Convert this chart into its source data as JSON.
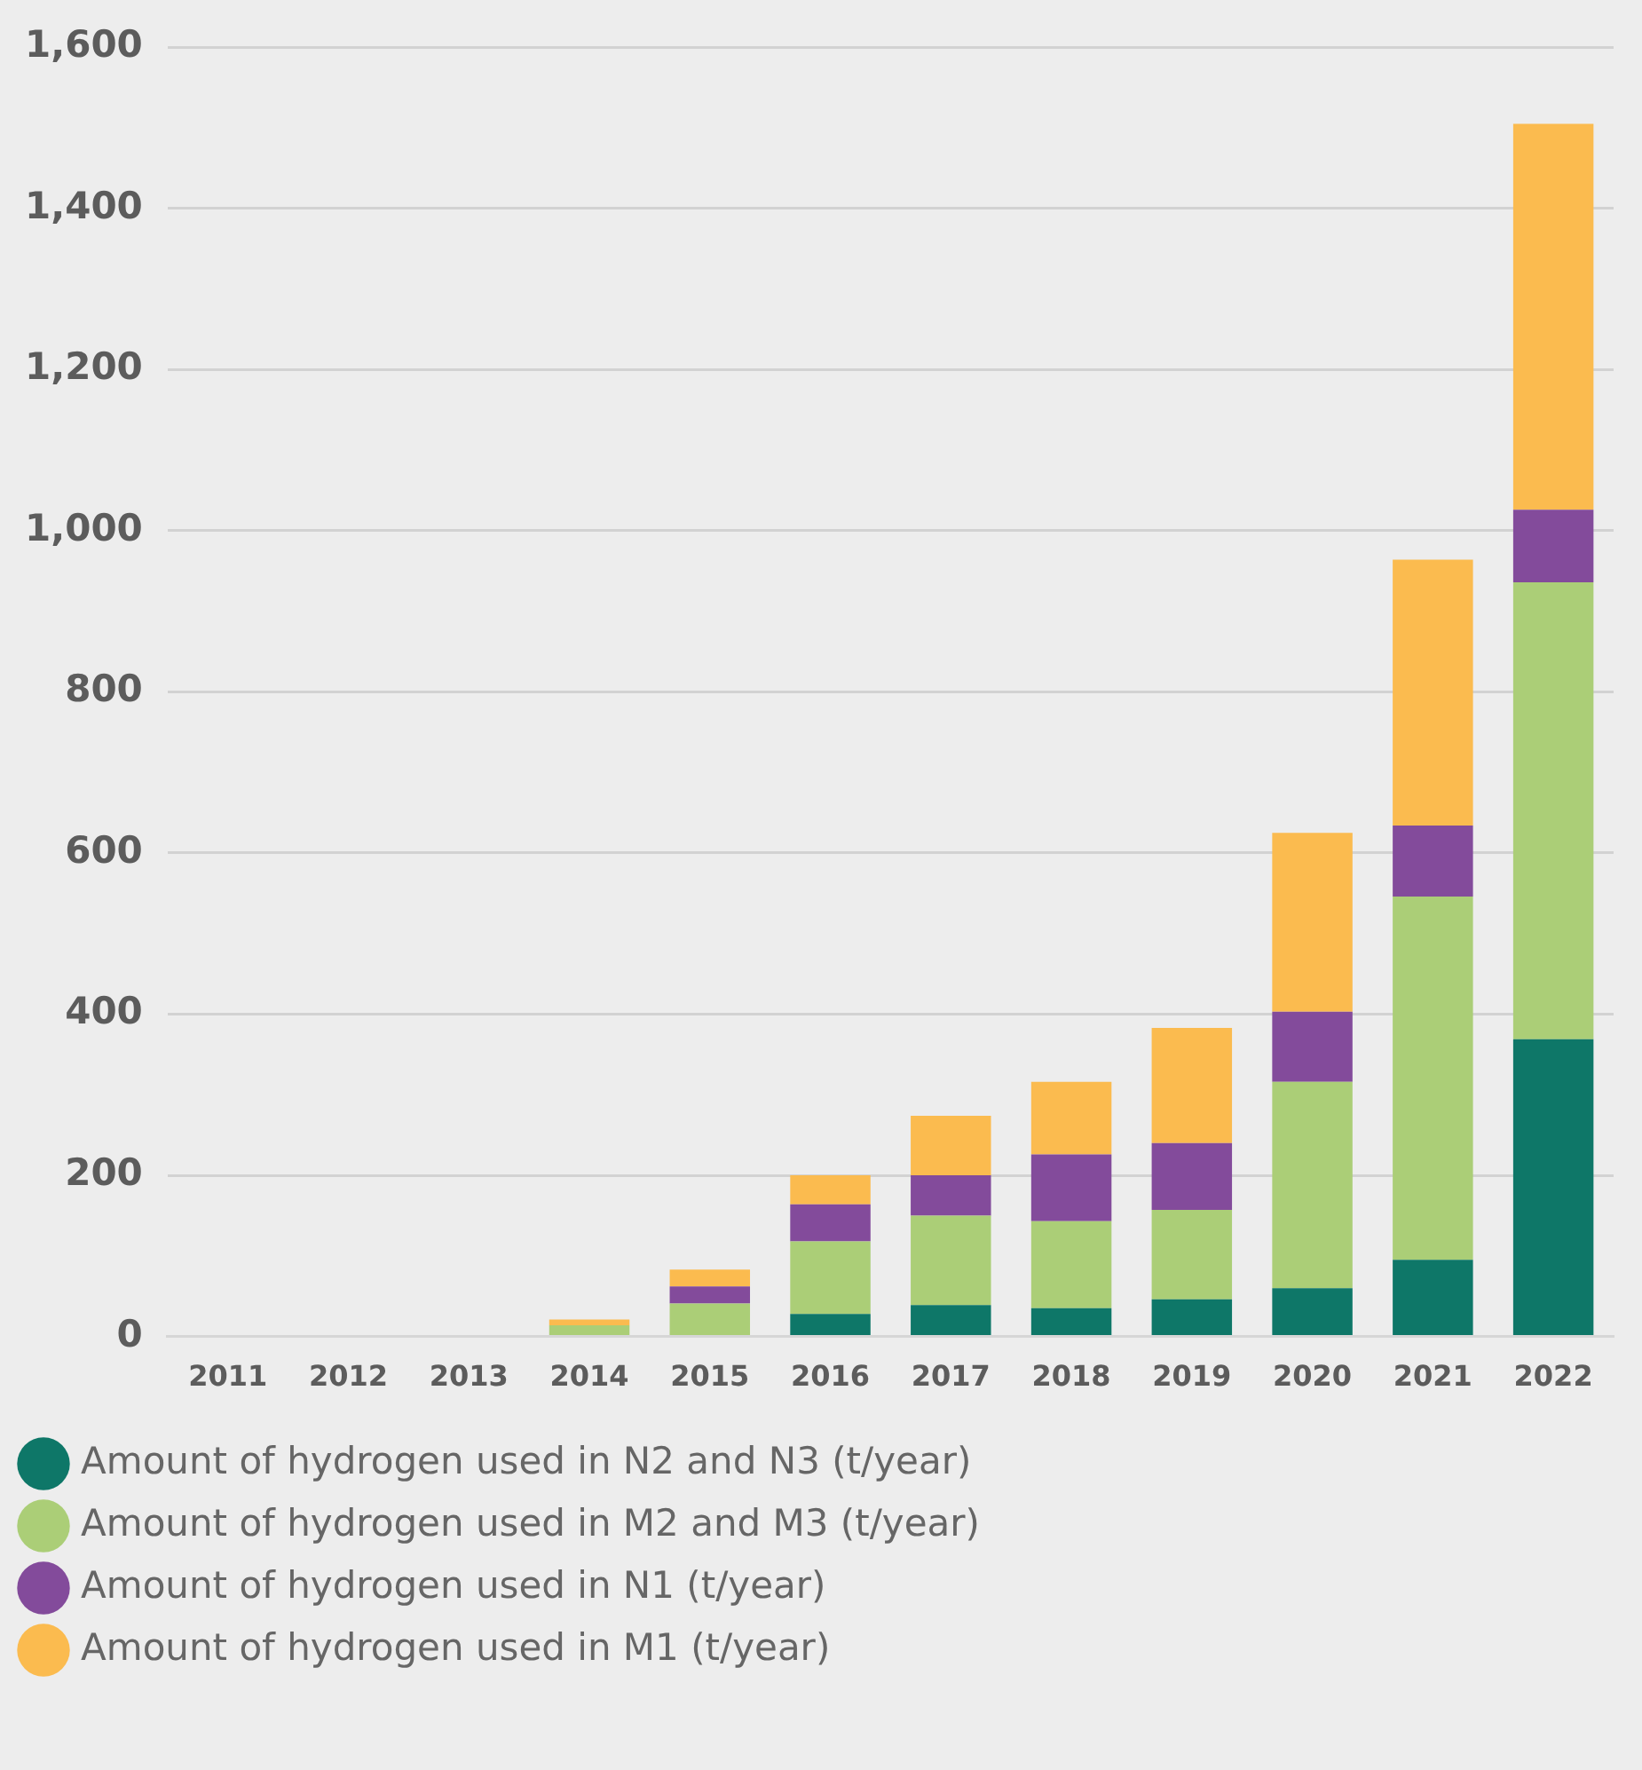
{
  "chart_data": {
    "type": "bar",
    "stacked": true,
    "categories": [
      "2011",
      "2012",
      "2013",
      "2014",
      "2015",
      "2016",
      "2017",
      "2018",
      "2019",
      "2020",
      "2021",
      "2022"
    ],
    "series": [
      {
        "name": "Amount of hydrogen used in N2 and N3 (t/year)",
        "color": "#0e7768",
        "values": [
          0,
          0,
          0,
          0,
          0,
          28,
          39,
          35,
          46,
          60,
          95,
          369
        ]
      },
      {
        "name": "Amount of hydrogen used in M2 and M3 (t/year)",
        "color": "#abce77",
        "values": [
          0,
          0,
          0,
          14,
          41,
          90,
          111,
          108,
          111,
          256,
          451,
          567
        ]
      },
      {
        "name": "Amount of hydrogen used in N1 (t/year)",
        "color": "#834b9b",
        "values": [
          0,
          0,
          0,
          0,
          21,
          46,
          50,
          83,
          83,
          87,
          88,
          90
        ]
      },
      {
        "name": "Amount of hydrogen used in M1 (t/year)",
        "color": "#fbbb4f",
        "values": [
          0,
          0,
          0,
          7,
          21,
          36,
          74,
          90,
          143,
          222,
          330,
          479
        ]
      }
    ],
    "ylim": [
      0,
      1600
    ],
    "yticks": [
      0,
      200,
      400,
      600,
      800,
      {
        "value": 1000,
        "label": "1,000"
      },
      {
        "value": 1200,
        "label": "1,200"
      },
      {
        "value": 1400,
        "label": "1,400"
      },
      {
        "value": 1600,
        "label": "1,600"
      }
    ],
    "grid": "y",
    "legend": "bottom"
  }
}
